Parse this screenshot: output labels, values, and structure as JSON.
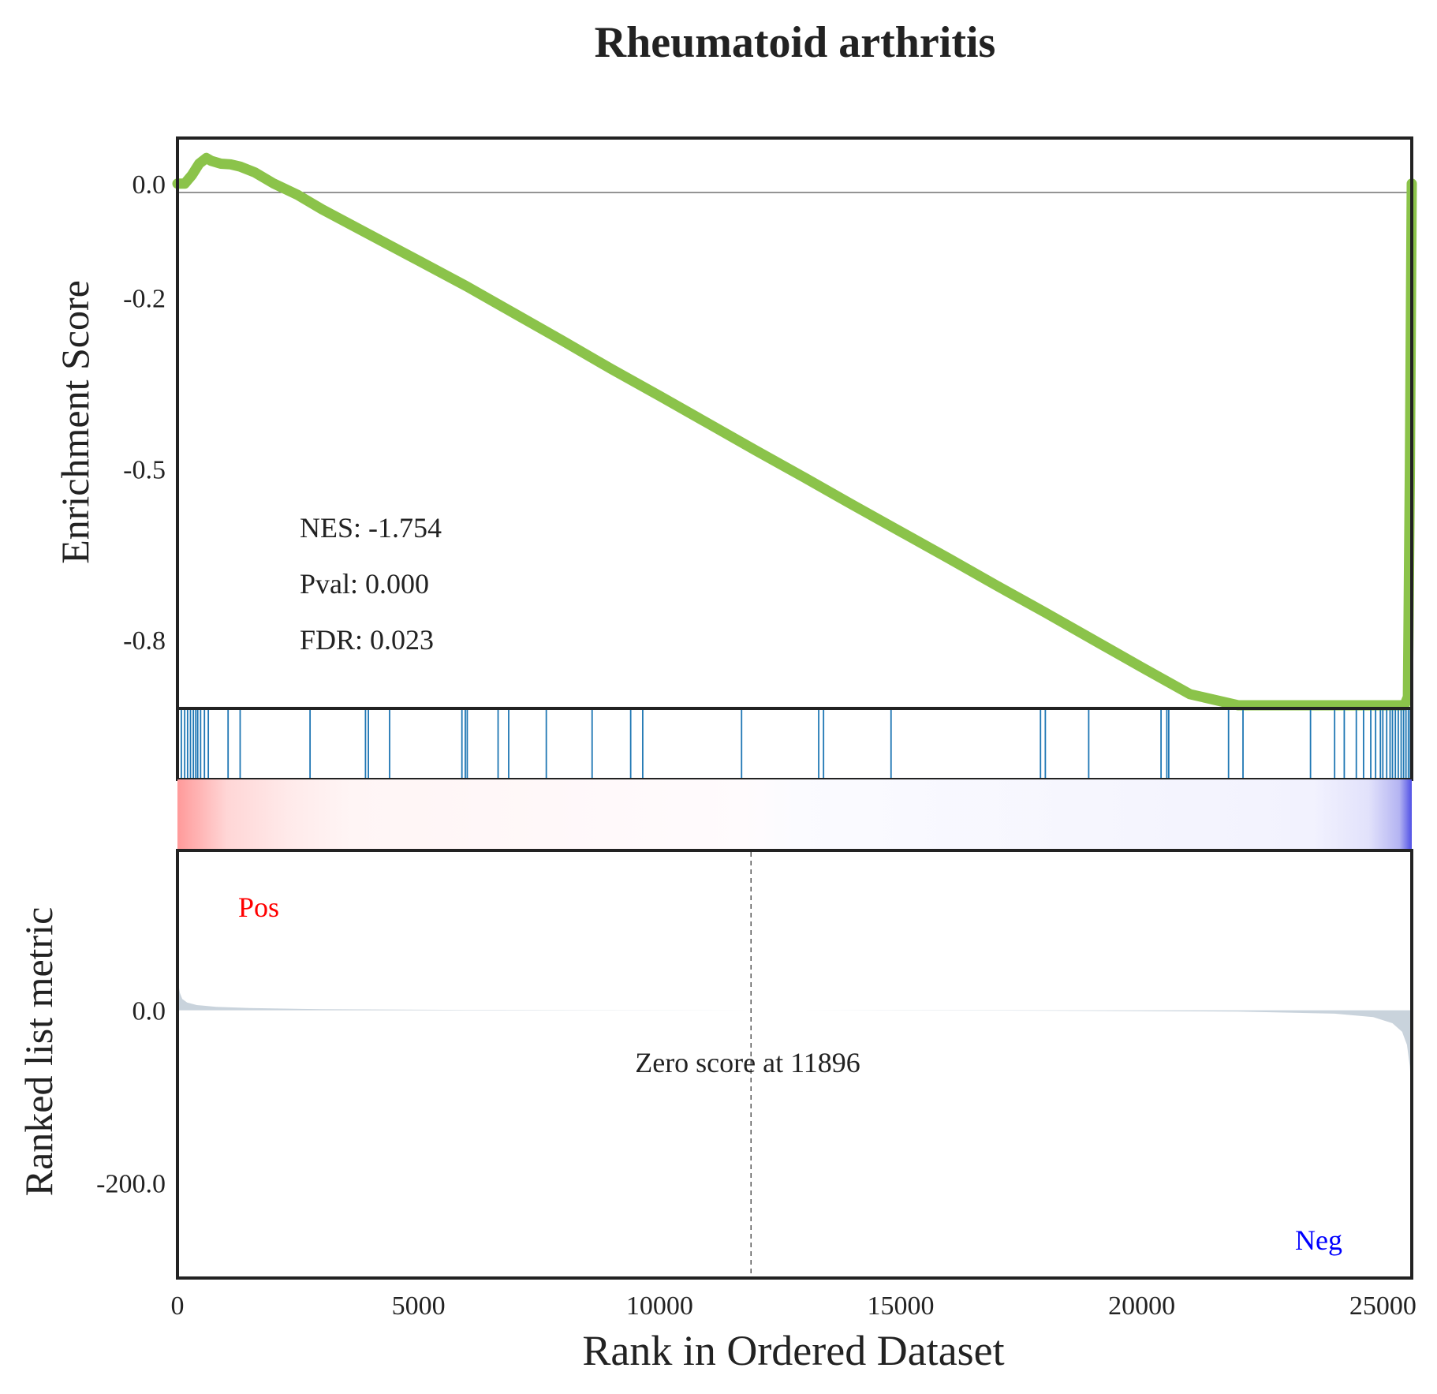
{
  "chart_data": {
    "type": "line",
    "title": "Rheumatoid arthritis",
    "xlabel": "Rank in Ordered Dataset",
    "xlim": [
      0,
      25600
    ],
    "xticks": [
      0,
      5000,
      10000,
      15000,
      20000,
      25000
    ],
    "es_panel": {
      "ylabel": "Enrichment Score",
      "ylim": [
        -0.92,
        0.08
      ],
      "yticks": [
        0.0,
        -0.2,
        -0.5,
        -0.8
      ],
      "ytick_labels": [
        "0.0",
        "-0.2",
        "-0.5",
        "-0.8"
      ],
      "line_color": "#8bc34a",
      "series": [
        {
          "x": [
            0,
            150,
            300,
            450,
            600,
            700,
            900,
            1100,
            1300,
            1600,
            2000,
            2500,
            3000,
            4000,
            5000,
            6000,
            7000,
            8000,
            9000,
            10000,
            11000,
            12000,
            13000,
            14000,
            15000,
            16000,
            17000,
            18000,
            19000,
            20000,
            21000,
            22000,
            23000,
            24000,
            24500,
            24800,
            25000,
            25150,
            25300,
            25450,
            25520,
            25560,
            25600
          ],
          "y": [
            0.0,
            0.0,
            0.015,
            0.035,
            0.045,
            0.04,
            0.035,
            0.034,
            0.03,
            0.02,
            0.0,
            -0.02,
            -0.045,
            -0.09,
            -0.135,
            -0.18,
            -0.228,
            -0.276,
            -0.325,
            -0.372,
            -0.42,
            -0.468,
            -0.515,
            -0.563,
            -0.61,
            -0.657,
            -0.705,
            -0.752,
            -0.8,
            -0.848,
            -0.895,
            -0.942,
            -0.985,
            -1.035,
            -1.05,
            -1.06,
            -1.065,
            -1.055,
            -1.03,
            -0.99,
            -0.9,
            -0.5,
            0.0
          ]
        }
      ],
      "zero_line": true
    },
    "stats": {
      "nes": "NES: -1.754",
      "pval": "Pval: 0.000",
      "fdr": "FDR: 0.023"
    },
    "hits": {
      "color": "#1f77b4",
      "positions": [
        80,
        150,
        210,
        270,
        330,
        380,
        420,
        480,
        560,
        640,
        1050,
        1300,
        2750,
        3900,
        3960,
        4400,
        5900,
        5970,
        6010,
        6650,
        6870,
        7650,
        8600,
        9400,
        9650,
        11700,
        13300,
        13400,
        14800,
        17900,
        18000,
        18900,
        20400,
        20520,
        20560,
        21800,
        22100,
        23500,
        24000,
        24200,
        24450,
        24600,
        24750,
        24850,
        24950,
        25000,
        25080,
        25150,
        25200,
        25260,
        25320,
        25380,
        25430,
        25480,
        25530,
        25570
      ]
    },
    "heatmap": {
      "pos_color": "#ff0000",
      "neg_color": "#0000ff"
    },
    "metric_panel": {
      "ylabel": "Ranked list metric",
      "ylim": [
        -310,
        185
      ],
      "yticks": [
        0.0,
        -200.0
      ],
      "ytick_labels": [
        "0.0",
        "-200.0"
      ],
      "fill_color": "#c9d3dc",
      "x": [
        0,
        20,
        50,
        100,
        200,
        400,
        800,
        1500,
        3000,
        6000,
        11896,
        18000,
        22000,
        24000,
        24800,
        25200,
        25400,
        25500,
        25560,
        25600
      ],
      "values": [
        45,
        30,
        20,
        13,
        9,
        6,
        4,
        2.5,
        1.2,
        0.4,
        0,
        -0.5,
        -1.5,
        -4,
        -8,
        -15,
        -25,
        -40,
        -65,
        -100
      ],
      "zero_cross": 11896,
      "zero_label": "Zero score at 11896",
      "pos_label": "Pos",
      "neg_label": "Neg",
      "pos_label_color": "#ff0000",
      "neg_label_color": "#0000ff"
    }
  }
}
